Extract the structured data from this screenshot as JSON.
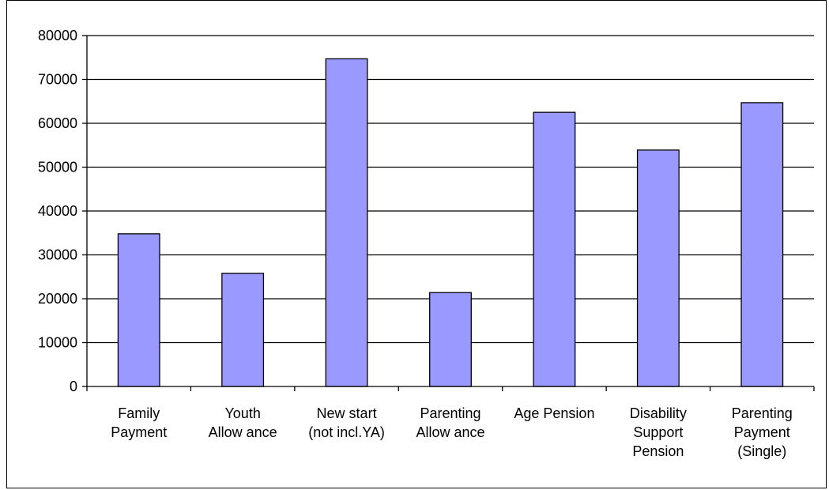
{
  "chart_data": {
    "type": "bar",
    "categories": [
      [
        "Family",
        "Payment"
      ],
      [
        "Youth",
        "Allow ance"
      ],
      [
        "New start",
        "(not incl.YA)"
      ],
      [
        "Parenting",
        "Allow ance"
      ],
      [
        "Age Pension"
      ],
      [
        "Disability",
        "Support",
        "Pension"
      ],
      [
        "Parenting",
        "Payment",
        "(Single)"
      ]
    ],
    "values": [
      34800,
      25800,
      74700,
      21400,
      62500,
      53900,
      64700
    ],
    "title": "",
    "xlabel": "",
    "ylabel": "",
    "ylim": [
      0,
      80000
    ],
    "yticks": [
      "0",
      "10000",
      "20000",
      "30000",
      "40000",
      "50000",
      "60000",
      "70000",
      "80000"
    ],
    "grid": true,
    "legend": "none",
    "colors": {
      "bar_fill": "#9999ff",
      "bar_stroke": "#000000",
      "grid": "#000000",
      "background": "#ffffff"
    }
  }
}
